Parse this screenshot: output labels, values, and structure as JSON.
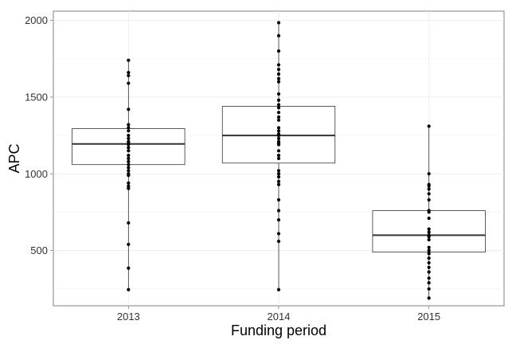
{
  "chart_data": {
    "type": "boxplot",
    "title": "",
    "xlabel": "Funding period",
    "ylabel": "APC",
    "ylim": [
      140,
      2060
    ],
    "yticks": [
      500,
      1000,
      1500,
      2000
    ],
    "grid": true,
    "categories": [
      "2013",
      "2014",
      "2015"
    ],
    "boxes": [
      {
        "category": "2013",
        "whisker_low": 245,
        "q1": 1060,
        "median": 1195,
        "q3": 1295,
        "whisker_high": 1740
      },
      {
        "category": "2014",
        "whisker_low": 245,
        "q1": 1070,
        "median": 1250,
        "q3": 1440,
        "whisker_high": 1985
      },
      {
        "category": "2015",
        "whisker_low": 190,
        "q1": 490,
        "median": 600,
        "q3": 760,
        "whisker_high": 1310
      }
    ],
    "points": [
      {
        "category": "2013",
        "values": [
          1740,
          1660,
          1640,
          1590,
          1420,
          1320,
          1300,
          1280,
          1250,
          1230,
          1210,
          1200,
          1190,
          1170,
          1150,
          1120,
          1100,
          1080,
          1060,
          1040,
          1020,
          1000,
          990,
          940,
          920,
          905,
          680,
          540,
          385,
          245
        ]
      },
      {
        "category": "2014",
        "values": [
          1985,
          1900,
          1800,
          1710,
          1680,
          1650,
          1620,
          1600,
          1520,
          1480,
          1450,
          1430,
          1400,
          1370,
          1350,
          1300,
          1280,
          1260,
          1250,
          1230,
          1210,
          1200,
          1190,
          1150,
          1120,
          1100,
          1020,
          1000,
          980,
          950,
          930,
          830,
          760,
          700,
          610,
          560,
          245
        ]
      },
      {
        "category": "2015",
        "values": [
          1310,
          1000,
          930,
          920,
          900,
          870,
          830,
          760,
          750,
          710,
          640,
          620,
          600,
          590,
          570,
          520,
          500,
          480,
          450,
          420,
          390,
          360,
          320,
          290,
          250,
          190
        ]
      }
    ]
  }
}
